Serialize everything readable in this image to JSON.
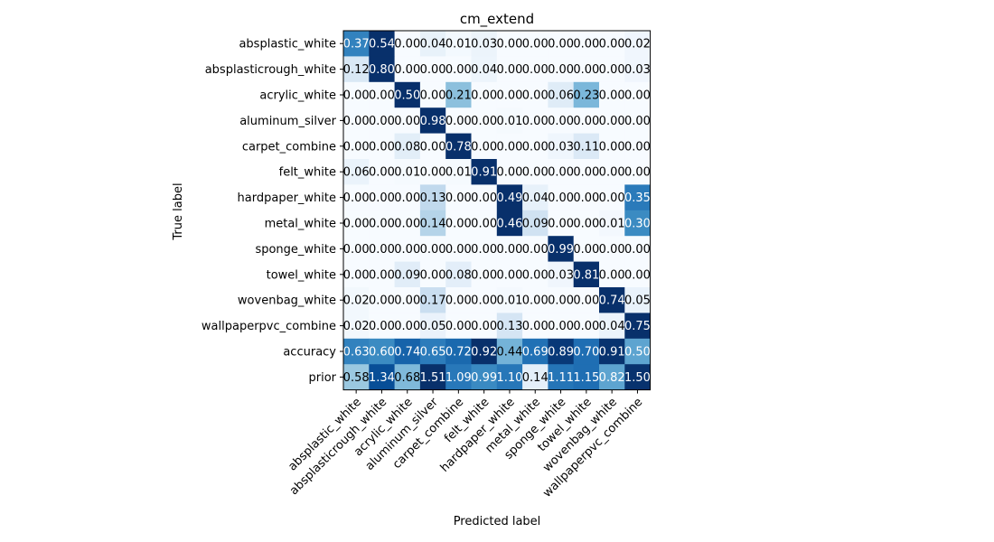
{
  "chart_data": {
    "type": "heatmap",
    "title": "cm_extend",
    "xlabel": "Predicted label",
    "ylabel": "True label",
    "x_categories": [
      "absplastic_white",
      "absplasticrough_white",
      "acrylic_white",
      "aluminum_silver",
      "carpet_combine",
      "felt_white",
      "hardpaper_white",
      "metal_white",
      "sponge_white",
      "towel_white",
      "wovenbag_white",
      "wallpaperpvc_combine"
    ],
    "y_categories": [
      "absplastic_white",
      "absplasticrough_white",
      "acrylic_white",
      "aluminum_silver",
      "carpet_combine",
      "felt_white",
      "hardpaper_white",
      "metal_white",
      "sponge_white",
      "towel_white",
      "wovenbag_white",
      "wallpaperpvc_combine",
      "accuracy",
      "prior"
    ],
    "values": [
      [
        0.37,
        0.54,
        0.0,
        0.04,
        0.01,
        0.03,
        0.0,
        0.0,
        0.0,
        0.0,
        0.0,
        0.02
      ],
      [
        0.12,
        0.8,
        0.0,
        0.0,
        0.0,
        0.04,
        0.0,
        0.0,
        0.0,
        0.0,
        0.0,
        0.03
      ],
      [
        0.0,
        0.0,
        0.5,
        0.0,
        0.21,
        0.0,
        0.0,
        0.0,
        0.06,
        0.23,
        0.0,
        0.0
      ],
      [
        0.0,
        0.0,
        0.0,
        0.98,
        0.0,
        0.0,
        0.01,
        0.0,
        0.0,
        0.0,
        0.0,
        0.0
      ],
      [
        0.0,
        0.0,
        0.08,
        0.0,
        0.78,
        0.0,
        0.0,
        0.0,
        0.03,
        0.11,
        0.0,
        0.0
      ],
      [
        0.06,
        0.0,
        0.01,
        0.0,
        0.01,
        0.91,
        0.0,
        0.0,
        0.0,
        0.0,
        0.0,
        0.0
      ],
      [
        0.0,
        0.0,
        0.0,
        0.13,
        0.0,
        0.0,
        0.49,
        0.04,
        0.0,
        0.0,
        0.0,
        0.35
      ],
      [
        0.0,
        0.0,
        0.0,
        0.14,
        0.0,
        0.0,
        0.46,
        0.09,
        0.0,
        0.0,
        0.01,
        0.3
      ],
      [
        0.0,
        0.0,
        0.0,
        0.0,
        0.0,
        0.0,
        0.0,
        0.0,
        0.99,
        0.0,
        0.0,
        0.0
      ],
      [
        0.0,
        0.0,
        0.09,
        0.0,
        0.08,
        0.0,
        0.0,
        0.0,
        0.03,
        0.81,
        0.0,
        0.0
      ],
      [
        0.02,
        0.0,
        0.0,
        0.17,
        0.0,
        0.0,
        0.01,
        0.0,
        0.0,
        0.0,
        0.74,
        0.05
      ],
      [
        0.02,
        0.0,
        0.0,
        0.05,
        0.0,
        0.0,
        0.13,
        0.0,
        0.0,
        0.0,
        0.04,
        0.75
      ],
      [
        0.63,
        0.6,
        0.74,
        0.65,
        0.72,
        0.92,
        0.44,
        0.69,
        0.89,
        0.7,
        0.91,
        0.5
      ],
      [
        0.58,
        1.34,
        0.68,
        1.51,
        1.09,
        0.99,
        1.1,
        0.14,
        1.11,
        1.15,
        0.82,
        1.5
      ]
    ],
    "colormap": "Blues",
    "grid": false,
    "legend": "none"
  }
}
